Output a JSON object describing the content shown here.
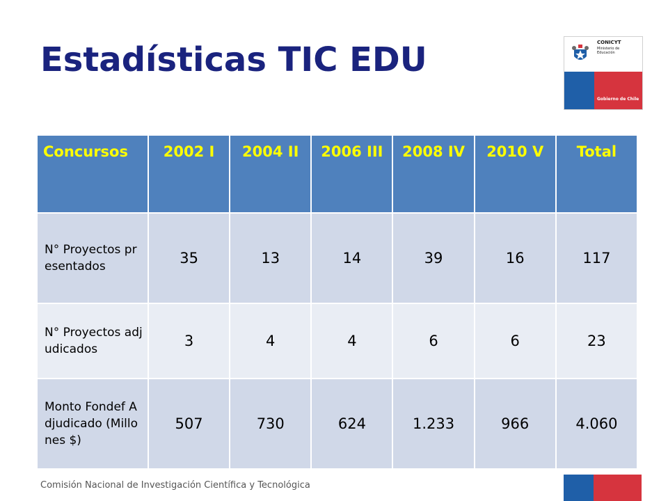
{
  "title": "Estadísticas TIC EDU",
  "logo": {
    "org": "CONICYT",
    "ministry": "Ministerio de\nEducación",
    "government": "Gobierno de Chile"
  },
  "table": {
    "headers": [
      "Concursos",
      "2002 I",
      "2004 II",
      "2006 III",
      "2008 IV",
      "2010 V",
      "Total"
    ],
    "rows": [
      {
        "label": "N° Proyectos presentados",
        "values": [
          "35",
          "13",
          "14",
          "39",
          "16",
          "117"
        ]
      },
      {
        "label": "N° Proyectos adjudicados",
        "values": [
          "3",
          "4",
          "4",
          "6",
          "6",
          "23"
        ]
      },
      {
        "label": "Monto Fondef Adjudicado (Millones $)",
        "values": [
          "507",
          "730",
          "624",
          "1.233",
          "966",
          "4.060"
        ]
      }
    ]
  },
  "footer": "Comisión Nacional de Investigación Científica y Tecnológica",
  "colors": {
    "title": "#1a237e",
    "header_bg": "#4f81bd",
    "header_text": "#ffff00",
    "row_odd": "#d0d8e8",
    "row_even": "#e9edf4",
    "flag_blue": "#1f5fa8",
    "flag_red": "#d6343e"
  }
}
